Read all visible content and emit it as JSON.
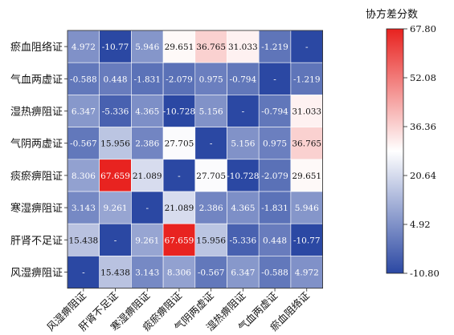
{
  "chart_data": {
    "type": "heatmap",
    "title": "",
    "xlabel": "",
    "ylabel": "",
    "rows": [
      "瘀血阻络证",
      "气血两虚证",
      "湿热痹阻证",
      "气阴两虚证",
      "痰瘀痹阻证",
      "寒湿痹阻证",
      "肝肾不足证",
      "风湿痹阻证"
    ],
    "columns": [
      "风湿痹阻证",
      "肝肾不足证",
      "寒湿痹阻证",
      "痰瘀痹阻证",
      "气阴两虚证",
      "湿热痹阻证",
      "气血两虚证",
      "瘀血阻络证"
    ],
    "values": [
      [
        4.972,
        -10.77,
        5.946,
        29.651,
        36.765,
        31.033,
        -1.219,
        null
      ],
      [
        -0.588,
        0.448,
        -1.831,
        -2.079,
        0.975,
        -0.794,
        null,
        -1.219
      ],
      [
        6.347,
        -5.336,
        4.365,
        -10.728,
        5.156,
        null,
        -0.794,
        31.033
      ],
      [
        -0.567,
        15.956,
        2.386,
        27.705,
        null,
        5.156,
        0.975,
        36.765
      ],
      [
        8.306,
        67.659,
        21.089,
        null,
        27.705,
        -10.728,
        -2.079,
        29.651
      ],
      [
        3.143,
        9.261,
        null,
        21.089,
        2.386,
        4.365,
        -1.831,
        5.946
      ],
      [
        15.438,
        null,
        9.261,
        67.659,
        15.956,
        -5.336,
        0.448,
        -10.77
      ],
      [
        null,
        15.438,
        3.143,
        8.306,
        -0.567,
        6.347,
        -0.588,
        4.972
      ]
    ],
    "cell_labels": [
      [
        "4.972",
        "-10.77",
        "5.946",
        "29.651",
        "36.765",
        "31.033",
        "-1.219",
        "-"
      ],
      [
        "-0.588",
        "0.448",
        "-1.831",
        "-2.079",
        "0.975",
        "-0.794",
        "-",
        "-1.219"
      ],
      [
        "6.347",
        "-5.336",
        "4.365",
        "-10.728",
        "5.156",
        "-",
        "-0.794",
        "31.033"
      ],
      [
        "-0.567",
        "15.956",
        "2.386",
        "27.705",
        "-",
        "5.156",
        "0.975",
        "36.765"
      ],
      [
        "8.306",
        "67.659",
        "21.089",
        "-",
        "27.705",
        "-10.728",
        "-2.079",
        "29.651"
      ],
      [
        "3.143",
        "9.261",
        "-",
        "21.089",
        "2.386",
        "4.365",
        "-1.831",
        "5.946"
      ],
      [
        "15.438",
        "-",
        "9.261",
        "67.659",
        "15.956",
        "-5.336",
        "0.448",
        "-10.77"
      ],
      [
        "-",
        "15.438",
        "3.143",
        "8.306",
        "-0.567",
        "6.347",
        "-0.588",
        "4.972"
      ]
    ],
    "colorbar": {
      "title": "协方差分数",
      "range": [
        -10.8,
        67.8
      ],
      "ticks": [
        67.8,
        52.08,
        36.36,
        20.64,
        4.92,
        -10.8
      ],
      "tick_labels": [
        "67.80",
        "52.08",
        "36.36",
        "20.64",
        "4.92",
        "-10.80"
      ],
      "colors": [
        "#2b48a3",
        "#ffffff",
        "#e8221f"
      ],
      "diagonal_color": "#2b48a3"
    },
    "legend": "right",
    "grid": false
  }
}
